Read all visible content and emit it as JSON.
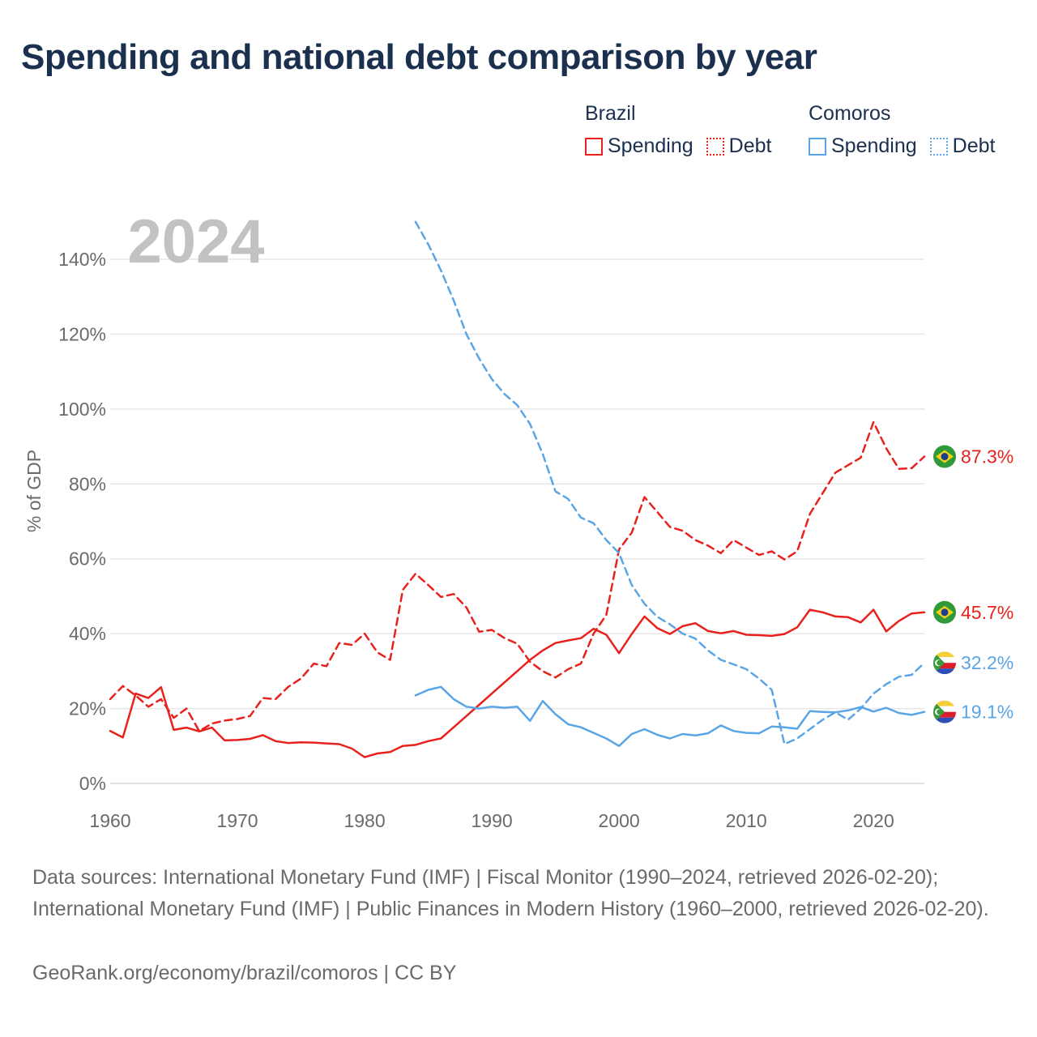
{
  "title": "Spending and national debt comparison by year",
  "year_badge": "2024",
  "legend": {
    "groups": [
      {
        "country": "Brazil",
        "items": [
          {
            "label": "Spending",
            "style": "solid"
          },
          {
            "label": "Debt",
            "style": "dotted"
          }
        ],
        "color": "#e8211d"
      },
      {
        "country": "Comoros",
        "items": [
          {
            "label": "Spending",
            "style": "solid"
          },
          {
            "label": "Debt",
            "style": "dotted"
          }
        ],
        "color": "#5aa5e6"
      }
    ]
  },
  "footer": {
    "sources": "Data sources: International Monetary Fund (IMF) | Fiscal Monitor (1990–2024, retrieved 2026-02-20); International Monetary Fund (IMF) | Public Finances in Modern History (1960–2000, retrieved 2026-02-20).",
    "credit": "GeoRank.org/economy/brazil/comoros | CC BY"
  },
  "chart_data": {
    "type": "line",
    "title": "Spending and national debt comparison by year",
    "ylabel": "% of GDP",
    "xlabel": "",
    "xlim": [
      1960,
      2024
    ],
    "ylim": [
      0,
      150
    ],
    "x_ticks": [
      1960,
      1970,
      1980,
      1990,
      2000,
      2010,
      2020
    ],
    "y_ticks": [
      0,
      20,
      40,
      60,
      80,
      100,
      120,
      140
    ],
    "y_tick_labels": [
      "0%",
      "20%",
      "40%",
      "60%",
      "80%",
      "100%",
      "120%",
      "140%"
    ],
    "series": [
      {
        "name": "Brazil Debt",
        "country": "Brazil",
        "metric": "Debt",
        "color": "#e8211d",
        "dash": true,
        "start_year": 1960,
        "end_label": "87.3%",
        "values": [
          22.5,
          26,
          23.5,
          20.5,
          22.5,
          17.5,
          20,
          14,
          16,
          16.8,
          17.2,
          18,
          22.8,
          22.5,
          25.8,
          28,
          32,
          31.3,
          37.5,
          37,
          40,
          35,
          33,
          51.7,
          56,
          53,
          49.8,
          50.6,
          47,
          40.5,
          41,
          38.8,
          37.3,
          32.5,
          30,
          28.3,
          30.5,
          32,
          40,
          45,
          62.5,
          67,
          76.5,
          72.5,
          68.5,
          67.5,
          65,
          63.5,
          61.5,
          65,
          63,
          61,
          62,
          59.8,
          62,
          72,
          77.5,
          83,
          85,
          87,
          96.5,
          89.5,
          84,
          84.2,
          87.3
        ]
      },
      {
        "name": "Brazil Spending",
        "country": "Brazil",
        "metric": "Spending",
        "color": "#e8211d",
        "dash": false,
        "start_year": 1960,
        "end_label": "45.7%",
        "values": [
          14,
          12.3,
          24,
          22.8,
          25.7,
          14.3,
          14.9,
          13.9,
          14.9,
          11.5,
          11.6,
          11.9,
          12.9,
          11.3,
          10.8,
          11,
          10.9,
          10.7,
          10.5,
          9.3,
          7,
          8,
          8.4,
          10,
          10.3,
          11.3,
          12,
          15,
          18,
          21,
          24,
          27,
          30,
          33,
          35.5,
          37.5,
          38.2,
          38.8,
          41.3,
          39.7,
          34.8,
          39.9,
          44.6,
          41.5,
          39.9,
          42,
          42.8,
          40.7,
          40.1,
          40.7,
          39.7,
          39.6,
          39.4,
          39.9,
          41.7,
          46.4,
          45.7,
          44.6,
          44.4,
          43,
          46.4,
          40.6,
          43.4,
          45.4,
          45.7
        ]
      },
      {
        "name": "Comoros Debt",
        "country": "Comoros",
        "metric": "Debt",
        "color": "#5aa5e6",
        "dash": true,
        "start_year": 1984,
        "end_label": "32.2%",
        "values": [
          150,
          144,
          137,
          129,
          120,
          113.5,
          108,
          104,
          101,
          96,
          88,
          78,
          76,
          71,
          69.5,
          65,
          61.5,
          53,
          48,
          44.5,
          42.5,
          40,
          38.7,
          35.5,
          33,
          31.8,
          30.5,
          28,
          25,
          10.5,
          12,
          14.5,
          17,
          19,
          17,
          20,
          24,
          26.5,
          28.5,
          29,
          32.2
        ]
      },
      {
        "name": "Comoros Spending",
        "country": "Comoros",
        "metric": "Spending",
        "color": "#5aa5e6",
        "dash": false,
        "start_year": 1984,
        "end_label": "19.1%",
        "values": [
          23.5,
          25,
          25.8,
          22.5,
          20.5,
          20,
          20.5,
          20.2,
          20.5,
          16.7,
          22,
          18.5,
          15.8,
          15,
          13.5,
          12,
          10,
          13.2,
          14.5,
          13,
          12,
          13.2,
          12.8,
          13.4,
          15.5,
          14,
          13.5,
          13.4,
          15.2,
          15,
          14.6,
          19.3,
          19.1,
          19,
          19.5,
          20.4,
          19.2,
          20.2,
          18.8,
          18.3,
          19.1
        ]
      }
    ]
  }
}
